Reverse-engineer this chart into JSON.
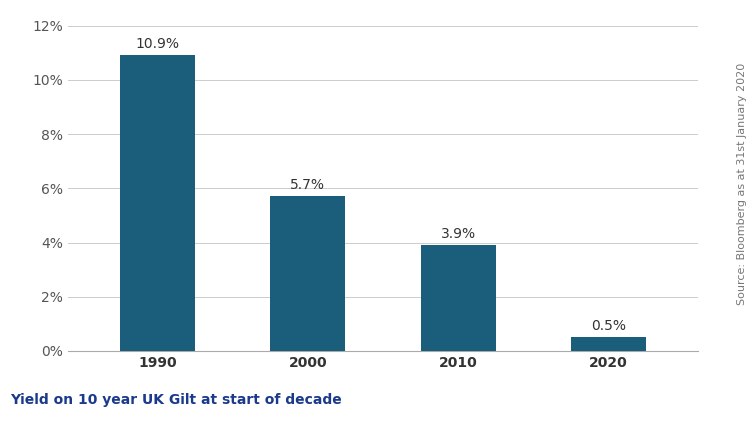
{
  "categories": [
    "1990",
    "2000",
    "2010",
    "2020"
  ],
  "values": [
    10.9,
    5.7,
    3.9,
    0.5
  ],
  "bar_color": "#1b5e7b",
  "ylim": [
    0,
    12
  ],
  "yticks": [
    0,
    2,
    4,
    6,
    8,
    10,
    12
  ],
  "ytick_labels": [
    "0%",
    "2%",
    "4%",
    "6%",
    "8%",
    "10%",
    "12%"
  ],
  "footnote": "Yield on 10 year UK Gilt at start of decade",
  "source_text": "Source: Bloomberg as at 31st January 2020",
  "bar_labels": [
    "10.9%",
    "5.7%",
    "3.9%",
    "0.5%"
  ],
  "background_color": "#ffffff",
  "footer_bg_color": "#e8e8e8",
  "bar_width": 0.5,
  "label_fontsize": 10,
  "tick_fontsize": 10,
  "footnote_fontsize": 10,
  "source_fontsize": 8,
  "grid_color": "#cccccc",
  "footnote_color": "#1b3a8c"
}
